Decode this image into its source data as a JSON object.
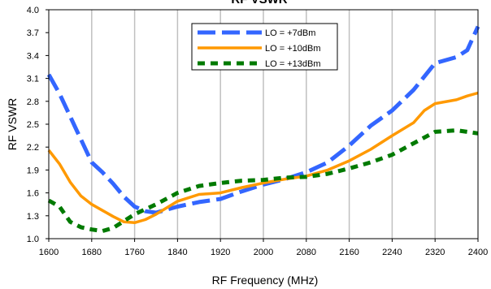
{
  "chart_data": {
    "type": "line",
    "title": "RF VSWR",
    "xlabel": "RF Frequency (MHz)",
    "ylabel": "RF VSWR",
    "xlim": [
      1600,
      2400
    ],
    "ylim": [
      1.0,
      4.0
    ],
    "x_ticks": [
      "1600",
      "1680",
      "1760",
      "1840",
      "1920",
      "2000",
      "2080",
      "2160",
      "2240",
      "2320",
      "2400"
    ],
    "y_ticks": [
      "1.0",
      "1.3",
      "1.6",
      "1.9",
      "2.2",
      "2.5",
      "2.8",
      "3.1",
      "3.4",
      "3.7",
      "4.0"
    ],
    "grid": "vertical",
    "legend_position": "top-center",
    "series": [
      {
        "name": "LO = +7dBm",
        "color": "#3366ff",
        "style": "long-dash",
        "x": [
          1600,
          1620,
          1640,
          1660,
          1680,
          1700,
          1720,
          1740,
          1760,
          1780,
          1800,
          1840,
          1880,
          1920,
          1960,
          2000,
          2040,
          2080,
          2120,
          2160,
          2200,
          2240,
          2280,
          2320,
          2360,
          2380,
          2400
        ],
        "y": [
          3.15,
          2.9,
          2.6,
          2.3,
          2.0,
          1.87,
          1.72,
          1.55,
          1.42,
          1.36,
          1.34,
          1.42,
          1.48,
          1.52,
          1.62,
          1.71,
          1.78,
          1.87,
          2.0,
          2.22,
          2.48,
          2.68,
          2.95,
          3.3,
          3.38,
          3.47,
          3.78
        ]
      },
      {
        "name": "LO = +10dBm",
        "color": "#ff9900",
        "style": "solid",
        "x": [
          1600,
          1620,
          1640,
          1660,
          1680,
          1700,
          1720,
          1740,
          1760,
          1780,
          1800,
          1840,
          1880,
          1920,
          1960,
          2000,
          2040,
          2080,
          2120,
          2160,
          2200,
          2240,
          2280,
          2300,
          2320,
          2360,
          2380,
          2400
        ],
        "y": [
          2.16,
          1.98,
          1.74,
          1.56,
          1.45,
          1.37,
          1.29,
          1.22,
          1.21,
          1.25,
          1.32,
          1.49,
          1.58,
          1.6,
          1.67,
          1.73,
          1.78,
          1.82,
          1.9,
          2.02,
          2.17,
          2.35,
          2.52,
          2.68,
          2.77,
          2.82,
          2.87,
          2.91
        ]
      },
      {
        "name": "LO = +13dBm",
        "color": "#007a00",
        "style": "dotted",
        "x": [
          1600,
          1620,
          1640,
          1660,
          1680,
          1700,
          1720,
          1760,
          1800,
          1840,
          1880,
          1920,
          1960,
          2000,
          2040,
          2080,
          2120,
          2160,
          2200,
          2240,
          2280,
          2320,
          2360,
          2400
        ],
        "y": [
          1.5,
          1.42,
          1.22,
          1.15,
          1.12,
          1.1,
          1.14,
          1.32,
          1.45,
          1.6,
          1.69,
          1.73,
          1.76,
          1.77,
          1.8,
          1.81,
          1.85,
          1.92,
          2.0,
          2.1,
          2.25,
          2.4,
          2.42,
          2.38
        ]
      }
    ]
  }
}
